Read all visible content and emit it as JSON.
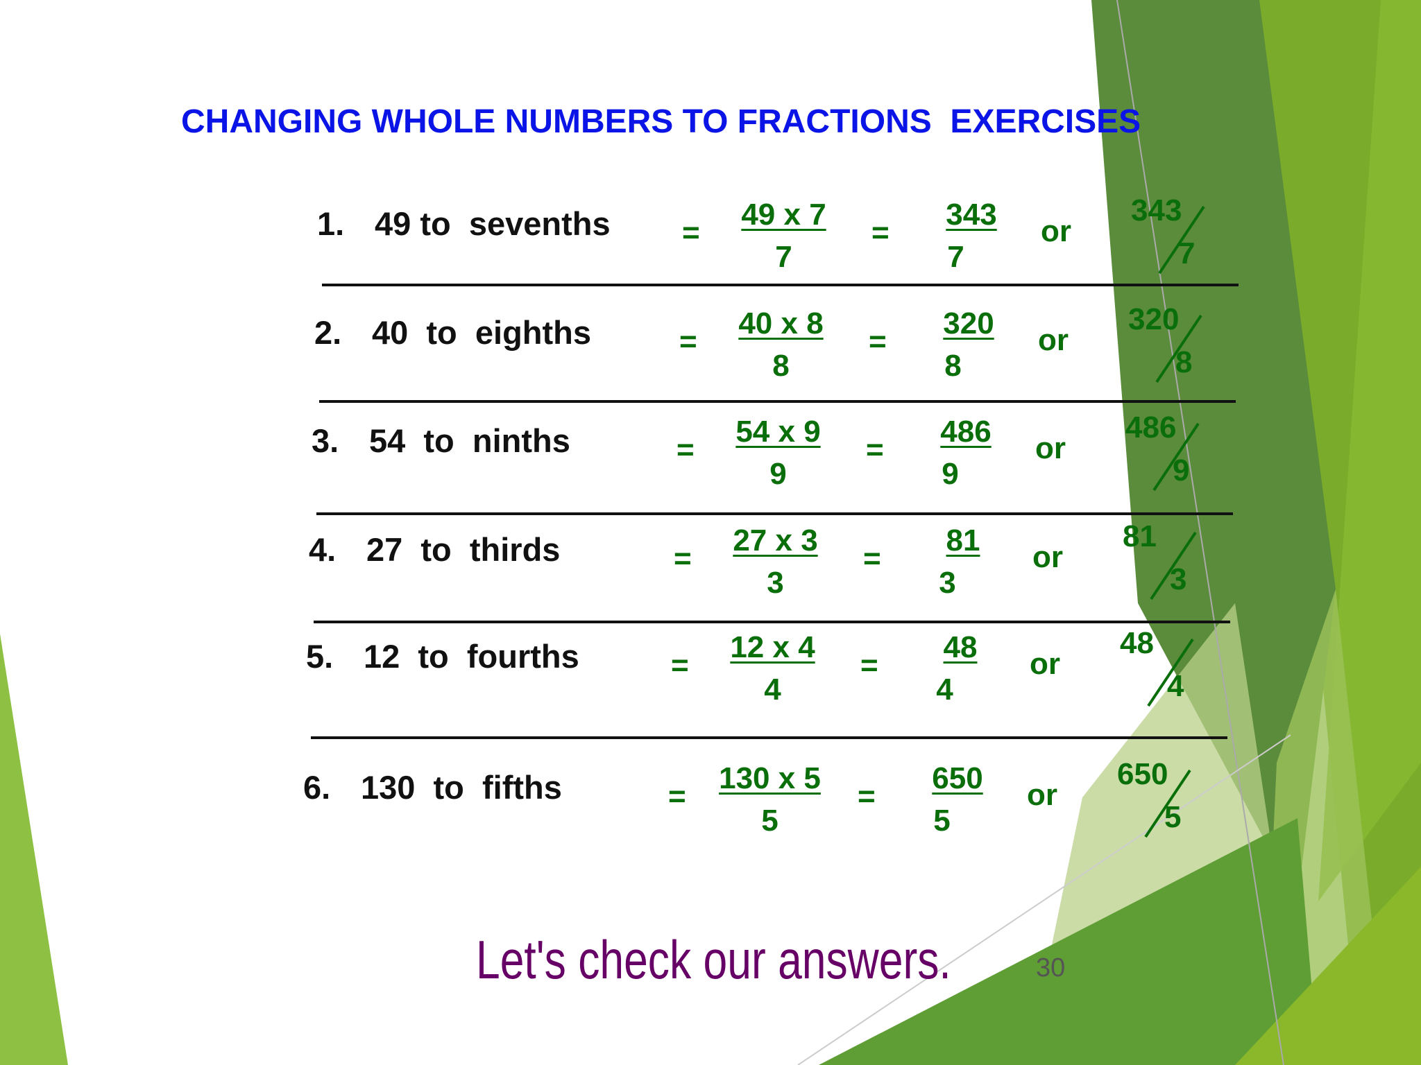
{
  "title": "CHANGING WHOLE NUMBERS TO FRACTIONS  EXERCISES",
  "rows": [
    {
      "number": "1.",
      "label": "49 to  sevenths",
      "eq": "=",
      "step_num": "49 x 7",
      "step_den": "7",
      "result_num": "343",
      "result_den": "7",
      "or": "or",
      "slash_num": "343",
      "slash_den": "7"
    },
    {
      "number": "2.",
      "label": "40  to  eighths",
      "eq": "=",
      "step_num": "40 x 8",
      "step_den": "8",
      "result_num": "320",
      "result_den": "8",
      "or": "or",
      "slash_num": "320",
      "slash_den": "8"
    },
    {
      "number": "3.",
      "label": "54  to  ninths",
      "eq": "=",
      "step_num": "54 x 9",
      "step_den": "9",
      "result_num": "486",
      "result_den": "9",
      "or": "or",
      "slash_num": "486",
      "slash_den": "9"
    },
    {
      "number": "4.",
      "label": "27  to  thirds",
      "eq": "=",
      "step_num": "27 x 3",
      "step_den": "3",
      "result_num": "81",
      "result_den": "3",
      "or": "or",
      "slash_num": "81",
      "slash_den": "3"
    },
    {
      "number": "5.",
      "label": "12  to  fourths",
      "eq": "=",
      "step_num": "12 x 4",
      "step_den": "4",
      "result_num": "48",
      "result_den": "4",
      "or": "or",
      "slash_num": "48",
      "slash_den": "4"
    },
    {
      "number": "6.",
      "label": "130  to  fifths",
      "eq": "=",
      "step_num": "130 x 5",
      "step_den": "5",
      "result_num": "650",
      "result_den": "5",
      "or": "or",
      "slash_num": "650",
      "slash_den": "5"
    }
  ],
  "footer": {
    "text": "Let's check our answers.",
    "page_number": "30"
  },
  "colors": {
    "title": "#0a14e6",
    "answers": "#0a6e0a",
    "footer": "#660066",
    "theme_green": "#5b8c3c"
  }
}
